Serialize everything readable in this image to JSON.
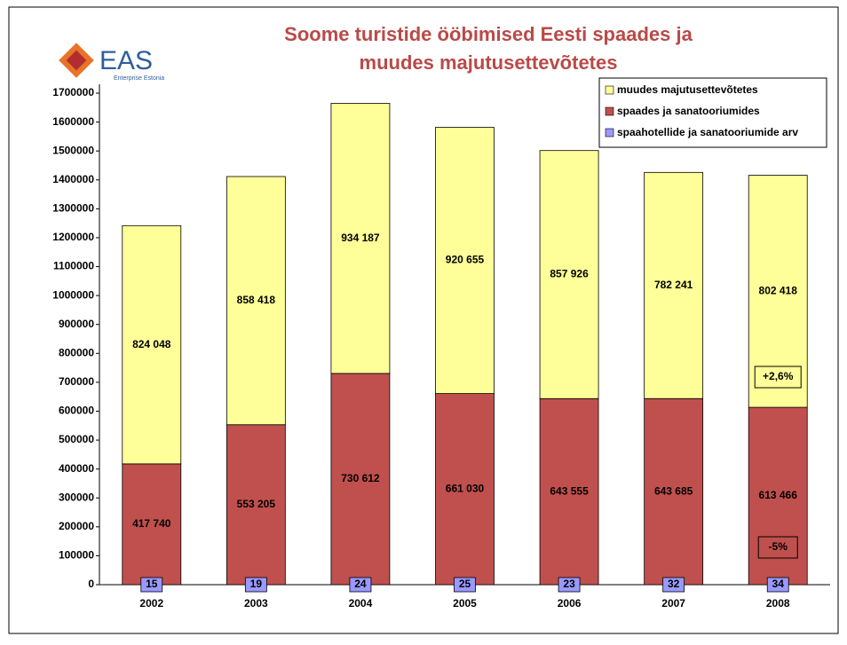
{
  "logo": {
    "text": "EAS",
    "subtitle": "Enterprise Estonia"
  },
  "chart_data": {
    "type": "stacked-bar",
    "title": "Soome turistide ööbimised Eesti spaades ja muudes majutusettevõtetes",
    "categories": [
      "2002",
      "2003",
      "2004",
      "2005",
      "2006",
      "2007",
      "2008"
    ],
    "series": [
      {
        "name": "spaades ja sanatooriumides",
        "color": "#c0504d",
        "values": [
          417740,
          553205,
          730612,
          661030,
          643555,
          643685,
          613466
        ],
        "value_labels": [
          "417 740",
          "553 205",
          "730 612",
          "661 030",
          "643 555",
          "643 685",
          "613 466"
        ]
      },
      {
        "name": "muudes majutusettevõtetes",
        "color": "#ffff99",
        "values": [
          824048,
          858418,
          934187,
          920655,
          857926,
          782241,
          802418
        ],
        "value_labels": [
          "824 048",
          "858 418",
          "934 187",
          "920 655",
          "857 926",
          "782 241",
          "802 418"
        ]
      }
    ],
    "counts": {
      "name": "spaahotellide ja sanatooriumide arv",
      "color": "#9999ff",
      "values": [
        15,
        19,
        24,
        25,
        23,
        32,
        34
      ]
    },
    "annotations": [
      "+2,6%",
      "-5%"
    ],
    "ylim": [
      0,
      1700000
    ],
    "yticks": [
      0,
      100000,
      200000,
      300000,
      400000,
      500000,
      600000,
      700000,
      800000,
      900000,
      1000000,
      1100000,
      1200000,
      1300000,
      1400000,
      1500000,
      1600000,
      1700000
    ],
    "grid": false
  }
}
